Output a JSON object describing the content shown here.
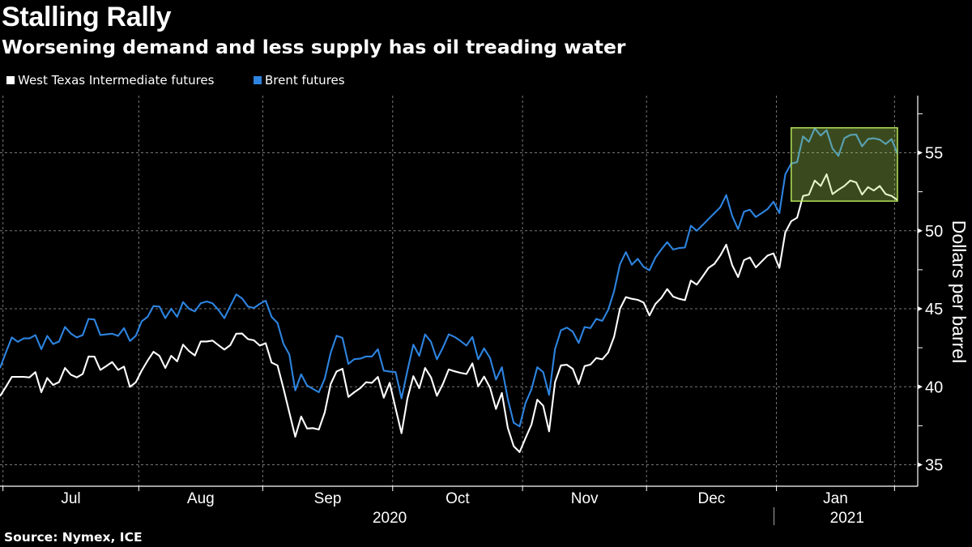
{
  "chart_data": {
    "type": "line",
    "title": "Stalling Rally",
    "subtitle": "Worsening demand and less supply has oil treading water",
    "ylabel": "Dollars per barrel",
    "xlabel": "",
    "source": "Source: Nymex, ICE",
    "ylim": [
      33.5,
      58.5
    ],
    "yticks": [
      "35",
      "40",
      "45",
      "50",
      "55"
    ],
    "y_axis_side": "right",
    "grid": true,
    "legend_position": "top-left",
    "month_labels": [
      "Jul",
      "Aug",
      "Sep",
      "Oct",
      "Nov",
      "Dec",
      "Jan"
    ],
    "year_labels": [
      "2020",
      "2021"
    ],
    "highlight_box": {
      "from": "2021-01-06",
      "to": "2021-02-01",
      "ymin": 51.9,
      "ymax": 56.6,
      "color": "#b4e05a"
    },
    "x": [
      "2020-06-30",
      "2020-07-01",
      "2020-07-02",
      "2020-07-03",
      "2020-07-06",
      "2020-07-07",
      "2020-07-08",
      "2020-07-09",
      "2020-07-10",
      "2020-07-13",
      "2020-07-14",
      "2020-07-15",
      "2020-07-16",
      "2020-07-17",
      "2020-07-20",
      "2020-07-21",
      "2020-07-22",
      "2020-07-23",
      "2020-07-24",
      "2020-07-27",
      "2020-07-28",
      "2020-07-29",
      "2020-07-30",
      "2020-07-31",
      "2020-08-03",
      "2020-08-04",
      "2020-08-05",
      "2020-08-06",
      "2020-08-07",
      "2020-08-10",
      "2020-08-11",
      "2020-08-12",
      "2020-08-13",
      "2020-08-14",
      "2020-08-17",
      "2020-08-18",
      "2020-08-19",
      "2020-08-20",
      "2020-08-21",
      "2020-08-24",
      "2020-08-25",
      "2020-08-26",
      "2020-08-27",
      "2020-08-28",
      "2020-08-31",
      "2020-09-01",
      "2020-09-02",
      "2020-09-03",
      "2020-09-04",
      "2020-09-07",
      "2020-09-08",
      "2020-09-09",
      "2020-09-10",
      "2020-09-11",
      "2020-09-14",
      "2020-09-15",
      "2020-09-16",
      "2020-09-17",
      "2020-09-18",
      "2020-09-21",
      "2020-09-22",
      "2020-09-23",
      "2020-09-24",
      "2020-09-25",
      "2020-09-28",
      "2020-09-29",
      "2020-09-30",
      "2020-10-01",
      "2020-10-02",
      "2020-10-05",
      "2020-10-06",
      "2020-10-07",
      "2020-10-08",
      "2020-10-09",
      "2020-10-12",
      "2020-10-13",
      "2020-10-14",
      "2020-10-15",
      "2020-10-16",
      "2020-10-19",
      "2020-10-20",
      "2020-10-21",
      "2020-10-22",
      "2020-10-23",
      "2020-10-26",
      "2020-10-27",
      "2020-10-28",
      "2020-10-29",
      "2020-10-30",
      "2020-11-02",
      "2020-11-03",
      "2020-11-04",
      "2020-11-05",
      "2020-11-06",
      "2020-11-09",
      "2020-11-10",
      "2020-11-11",
      "2020-11-12",
      "2020-11-13",
      "2020-11-16",
      "2020-11-17",
      "2020-11-18",
      "2020-11-19",
      "2020-11-20",
      "2020-11-23",
      "2020-11-24",
      "2020-11-25",
      "2020-11-26",
      "2020-11-27",
      "2020-11-30",
      "2020-12-01",
      "2020-12-02",
      "2020-12-03",
      "2020-12-04",
      "2020-12-07",
      "2020-12-08",
      "2020-12-09",
      "2020-12-10",
      "2020-12-11",
      "2020-12-14",
      "2020-12-15",
      "2020-12-16",
      "2020-12-17",
      "2020-12-18",
      "2020-12-21",
      "2020-12-22",
      "2020-12-23",
      "2020-12-24",
      "2020-12-28",
      "2020-12-29",
      "2020-12-30",
      "2020-12-31",
      "2021-01-04",
      "2021-01-05",
      "2021-01-06",
      "2021-01-07",
      "2021-01-08",
      "2021-01-11",
      "2021-01-12",
      "2021-01-13",
      "2021-01-14",
      "2021-01-15",
      "2021-01-18",
      "2021-01-19",
      "2021-01-20",
      "2021-01-21",
      "2021-01-22",
      "2021-01-25",
      "2021-01-26",
      "2021-01-27",
      "2021-01-28",
      "2021-01-29",
      "2021-02-01"
    ],
    "series": [
      {
        "name": "West Texas Intermediate futures",
        "color": "#ffffff",
        "values": [
          39.4,
          40.0,
          40.63,
          40.63,
          40.63,
          40.6,
          40.94,
          39.65,
          40.56,
          40.11,
          40.3,
          41.2,
          40.77,
          40.6,
          40.82,
          41.94,
          41.93,
          41.08,
          41.32,
          41.58,
          41.08,
          41.29,
          39.99,
          40.29,
          41.03,
          41.67,
          42.24,
          41.98,
          41.2,
          41.98,
          41.63,
          42.7,
          42.29,
          42.01,
          42.9,
          42.9,
          42.96,
          42.67,
          42.38,
          42.67,
          43.4,
          43.41,
          43.05,
          42.98,
          42.64,
          42.79,
          41.55,
          41.37,
          39.91,
          38.35,
          36.8,
          38.09,
          37.32,
          37.35,
          37.26,
          38.35,
          40.17,
          40.98,
          41.15,
          39.35,
          39.65,
          39.91,
          40.29,
          40.25,
          40.63,
          39.3,
          40.25,
          38.61,
          37.02,
          39.25,
          40.68,
          39.91,
          41.2,
          40.6,
          39.42,
          40.17,
          41.11,
          40.99,
          40.89,
          40.82,
          41.5,
          40.03,
          40.65,
          39.94,
          38.58,
          39.6,
          37.37,
          36.19,
          35.81,
          36.71,
          37.57,
          39.17,
          38.78,
          37.14,
          40.29,
          41.37,
          41.41,
          41.15,
          40.17,
          41.32,
          41.42,
          41.84,
          41.76,
          42.19,
          43.19,
          45.0,
          45.75,
          45.64,
          45.57,
          45.4,
          44.57,
          45.3,
          45.69,
          46.26,
          45.78,
          45.64,
          45.55,
          46.81,
          46.55,
          47.07,
          47.62,
          47.88,
          48.42,
          49.11,
          47.8,
          47.03,
          48.11,
          48.29,
          47.65,
          48.03,
          48.41,
          48.55,
          47.62,
          49.9,
          50.61,
          50.84,
          52.23,
          52.32,
          53.22,
          52.87,
          53.62,
          52.35,
          52.63,
          52.87,
          53.22,
          53.1,
          52.32,
          52.8,
          52.58,
          52.87,
          52.35,
          52.23,
          51.97
        ]
      },
      {
        "name": "Brent futures",
        "color": "#2d84e0",
        "values": [
          41.2,
          42.2,
          43.16,
          42.88,
          43.1,
          43.1,
          43.31,
          42.41,
          43.26,
          42.74,
          42.9,
          43.83,
          43.41,
          43.16,
          43.31,
          44.35,
          44.31,
          43.31,
          43.36,
          43.4,
          43.26,
          43.76,
          42.93,
          43.27,
          44.19,
          44.48,
          45.17,
          45.14,
          44.4,
          45.0,
          44.48,
          45.43,
          45.0,
          44.83,
          45.35,
          45.47,
          45.35,
          44.92,
          44.4,
          45.17,
          45.92,
          45.66,
          45.14,
          45.05,
          45.31,
          45.52,
          44.48,
          44.09,
          42.76,
          42.07,
          39.77,
          40.8,
          40.08,
          39.86,
          39.65,
          40.51,
          42.16,
          43.27,
          43.13,
          41.46,
          41.77,
          41.8,
          41.94,
          41.94,
          42.41,
          41.03,
          40.98,
          40.94,
          39.25,
          41.03,
          42.7,
          41.98,
          43.36,
          42.88,
          41.76,
          42.5,
          43.36,
          43.19,
          42.93,
          42.64,
          43.19,
          41.76,
          42.46,
          41.84,
          40.46,
          41.25,
          39.22,
          37.69,
          37.46,
          38.96,
          39.83,
          41.25,
          40.94,
          39.48,
          42.41,
          43.62,
          43.79,
          43.53,
          42.81,
          43.83,
          43.76,
          44.35,
          44.22,
          44.92,
          46.12,
          47.85,
          48.63,
          47.82,
          48.2,
          47.68,
          47.47,
          48.28,
          48.8,
          49.27,
          48.8,
          48.89,
          48.92,
          50.32,
          50.0,
          50.36,
          50.75,
          51.13,
          51.51,
          52.29,
          50.96,
          50.1,
          51.22,
          51.35,
          50.88,
          51.13,
          51.39,
          51.86,
          51.13,
          53.62,
          54.31,
          54.4,
          56.05,
          55.7,
          56.57,
          56.1,
          56.45,
          55.27,
          54.8,
          55.93,
          56.14,
          56.17,
          55.41,
          55.88,
          55.93,
          55.84,
          55.56,
          55.88,
          54.92
        ]
      }
    ]
  }
}
